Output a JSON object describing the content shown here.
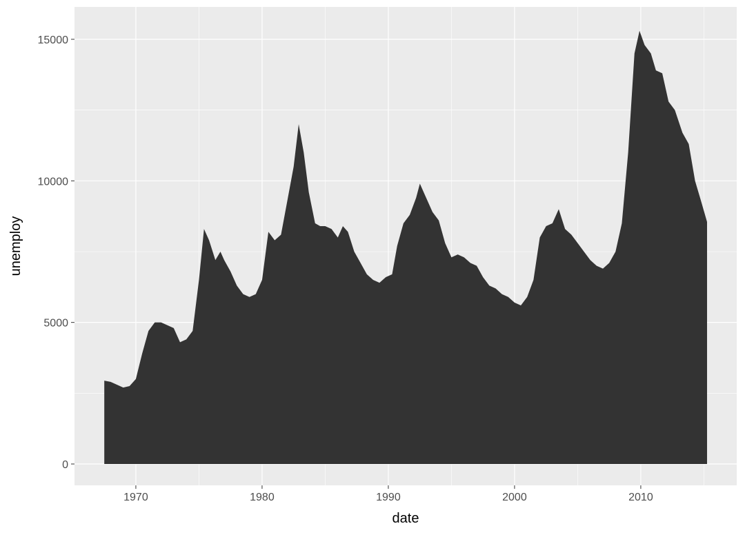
{
  "chart_data": {
    "type": "area",
    "x_label": "date",
    "y_label": "unemploy",
    "color": "#333333",
    "grid": true,
    "xlim": [
      1965.14,
      2017.6
    ],
    "ylim": [
      -755,
      16144
    ],
    "xticks": [
      1970,
      1980,
      1990,
      2000,
      2010
    ],
    "yticks": [
      0,
      5000,
      10000,
      15000
    ],
    "minor_xticks": [
      1975,
      1985,
      1995,
      2005,
      2015
    ],
    "minor_yticks": [
      2500,
      7500,
      12500
    ],
    "x": [
      1967.5,
      1968.0,
      1968.5,
      1969.0,
      1969.5,
      1970.0,
      1970.5,
      1971.0,
      1971.5,
      1972.0,
      1972.5,
      1973.0,
      1973.5,
      1974.0,
      1974.5,
      1975.0,
      1975.4,
      1975.8,
      1976.3,
      1976.7,
      1977.0,
      1977.5,
      1978.0,
      1978.5,
      1979.0,
      1979.5,
      1980.0,
      1980.5,
      1981.0,
      1981.5,
      1982.0,
      1982.5,
      1982.9,
      1983.3,
      1983.7,
      1984.2,
      1984.6,
      1985.0,
      1985.5,
      1986.0,
      1986.4,
      1986.8,
      1987.3,
      1987.8,
      1988.3,
      1988.8,
      1989.3,
      1989.8,
      1990.3,
      1990.7,
      1991.2,
      1991.7,
      1992.2,
      1992.5,
      1992.9,
      1993.5,
      1994.0,
      1994.5,
      1995.0,
      1995.5,
      1996.0,
      1996.5,
      1997.0,
      1997.5,
      1998.0,
      1998.5,
      1999.0,
      1999.5,
      2000.0,
      2000.5,
      2001.0,
      2001.5,
      2002.0,
      2002.5,
      2003.0,
      2003.5,
      2004.0,
      2004.5,
      2005.0,
      2005.5,
      2006.0,
      2006.5,
      2007.0,
      2007.5,
      2008.0,
      2008.5,
      2009.0,
      2009.5,
      2009.9,
      2010.3,
      2010.8,
      2011.2,
      2011.7,
      2012.2,
      2012.7,
      2013.3,
      2013.8,
      2014.3,
      2014.7,
      2015.25
    ],
    "values": [
      2944,
      2900,
      2800,
      2700,
      2750,
      3000,
      3900,
      4700,
      5000,
      5000,
      4900,
      4800,
      4300,
      4400,
      4700,
      6500,
      8300,
      7900,
      7200,
      7500,
      7200,
      6800,
      6300,
      6000,
      5900,
      6000,
      6500,
      8200,
      7900,
      8100,
      9300,
      10500,
      12000,
      11000,
      9600,
      8500,
      8400,
      8400,
      8300,
      8000,
      8400,
      8200,
      7500,
      7100,
      6700,
      6500,
      6400,
      6600,
      6700,
      7700,
      8500,
      8800,
      9400,
      9900,
      9500,
      8900,
      8600,
      7800,
      7300,
      7400,
      7300,
      7100,
      7000,
      6600,
      6300,
      6200,
      6000,
      5900,
      5700,
      5600,
      5900,
      6500,
      8000,
      8400,
      8500,
      9000,
      8300,
      8100,
      7800,
      7500,
      7200,
      7000,
      6900,
      7100,
      7500,
      8500,
      11000,
      14500,
      15300,
      14800,
      14500,
      13900,
      13800,
      12800,
      12500,
      11700,
      11300,
      10000,
      9400,
      8550
    ]
  }
}
